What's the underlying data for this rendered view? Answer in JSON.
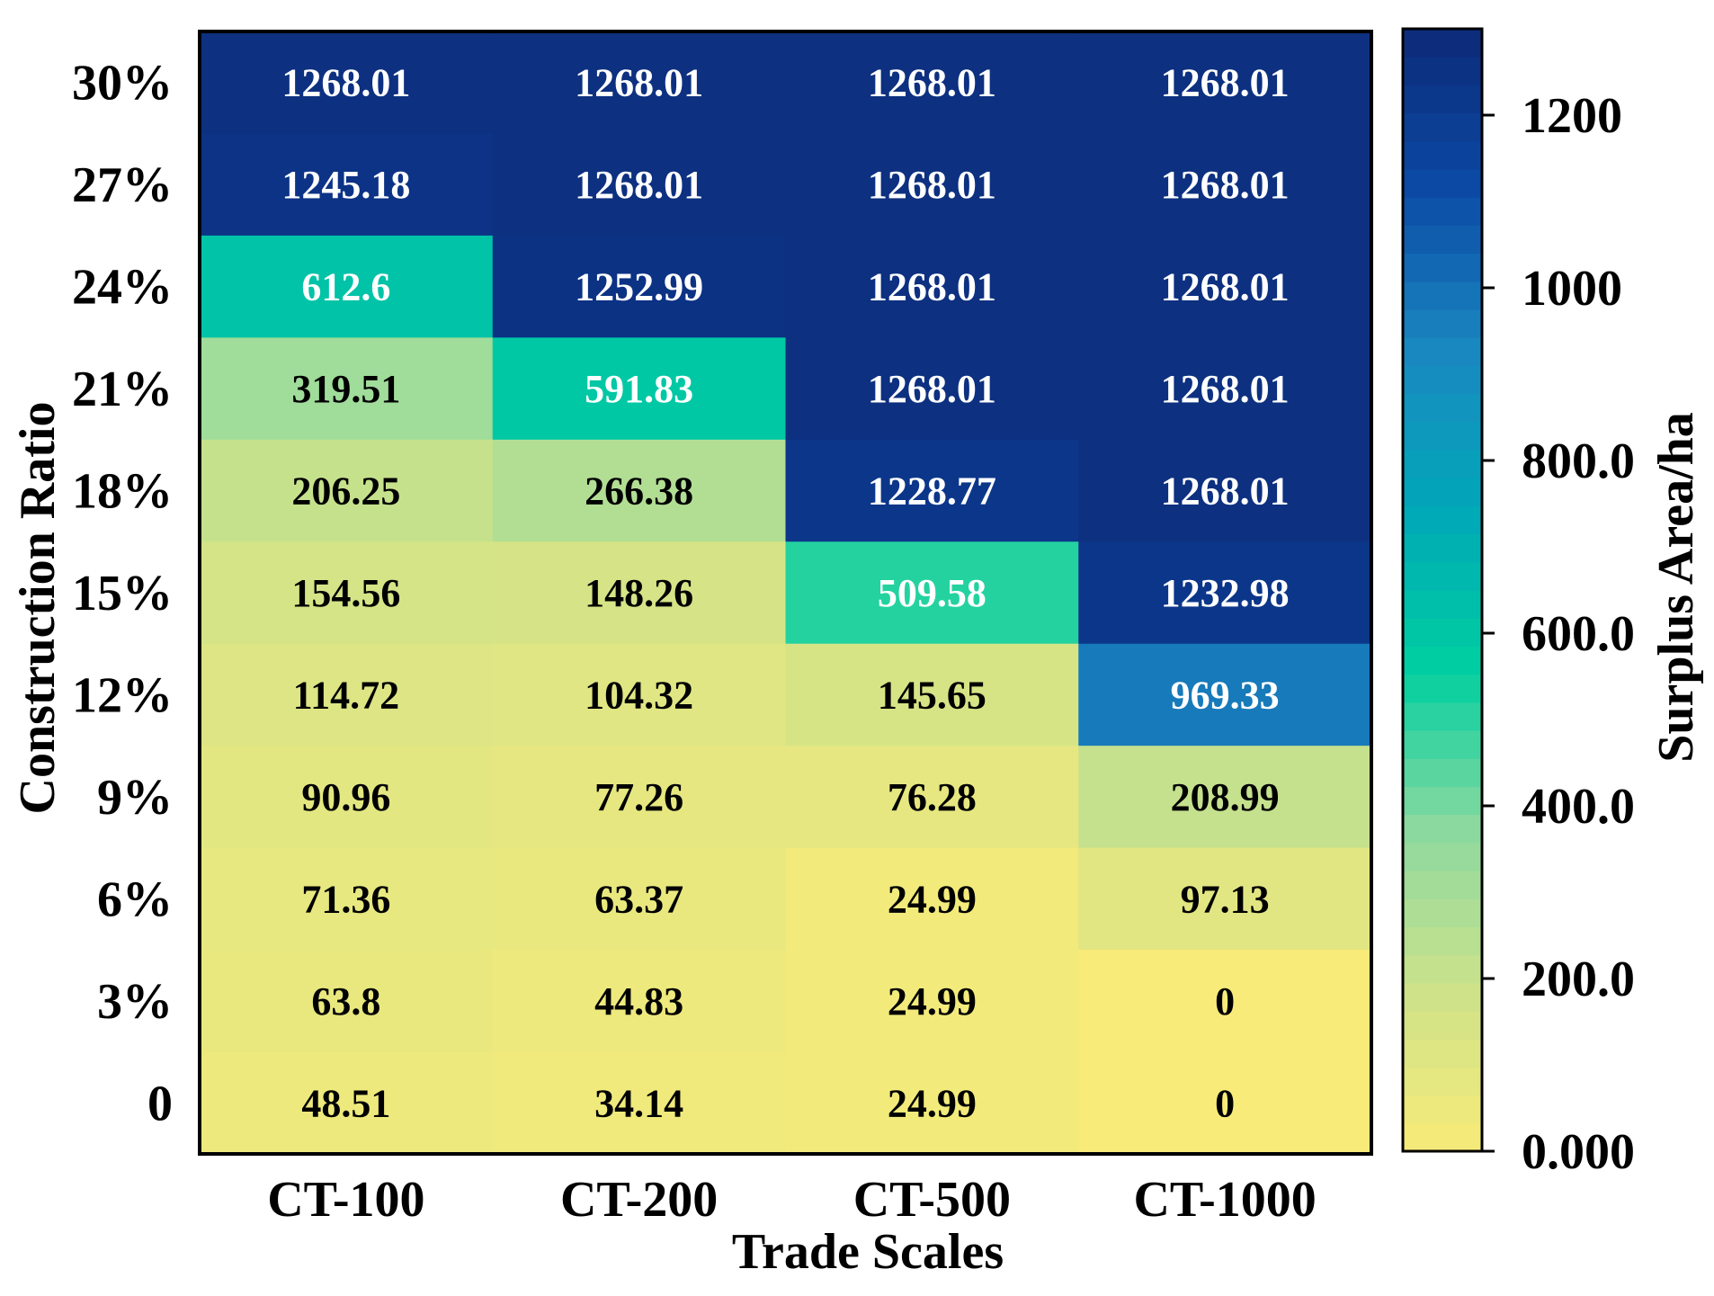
{
  "chart_data": {
    "type": "heatmap",
    "xlabel": "Trade Scales",
    "ylabel": "Construction Ratio",
    "colorbar_label": "Surplus Area/ha",
    "x_categories": [
      "CT-100",
      "CT-200",
      "CT-500",
      "CT-1000"
    ],
    "y_categories": [
      "30%",
      "27%",
      "24%",
      "21%",
      "18%",
      "15%",
      "12%",
      "9%",
      "6%",
      "3%",
      "0"
    ],
    "values": [
      [
        1268.01,
        1268.01,
        1268.01,
        1268.01
      ],
      [
        1245.18,
        1268.01,
        1268.01,
        1268.01
      ],
      [
        612.6,
        1252.99,
        1268.01,
        1268.01
      ],
      [
        319.51,
        591.83,
        1268.01,
        1268.01
      ],
      [
        206.25,
        266.38,
        1228.77,
        1268.01
      ],
      [
        154.56,
        148.26,
        509.58,
        1232.98
      ],
      [
        114.72,
        104.32,
        145.65,
        969.33
      ],
      [
        90.96,
        77.26,
        76.28,
        208.99
      ],
      [
        71.36,
        63.37,
        24.99,
        97.13
      ],
      [
        63.8,
        44.83,
        24.99,
        0
      ],
      [
        48.51,
        34.14,
        24.99,
        0
      ]
    ],
    "value_labels": [
      [
        "1268.01",
        "1268.01",
        "1268.01",
        "1268.01"
      ],
      [
        "1245.18",
        "1268.01",
        "1268.01",
        "1268.01"
      ],
      [
        "612.6",
        "1252.99",
        "1268.01",
        "1268.01"
      ],
      [
        "319.51",
        "591.83",
        "1268.01",
        "1268.01"
      ],
      [
        "206.25",
        "266.38",
        "1228.77",
        "1268.01"
      ],
      [
        "154.56",
        "148.26",
        "509.58",
        "1232.98"
      ],
      [
        "114.72",
        "104.32",
        "145.65",
        "969.33"
      ],
      [
        "90.96",
        "77.26",
        "76.28",
        "208.99"
      ],
      [
        "71.36",
        "63.37",
        "24.99",
        "97.13"
      ],
      [
        "63.8",
        "44.83",
        "24.99",
        "0"
      ],
      [
        "48.51",
        "34.14",
        "24.99",
        "0"
      ]
    ],
    "colorbar": {
      "range": [
        0,
        1300
      ],
      "ticks": [
        {
          "value": 0,
          "label": "0.000"
        },
        {
          "value": 200,
          "label": "200.0"
        },
        {
          "value": 400,
          "label": "400.0"
        },
        {
          "value": 600,
          "label": "600.0"
        },
        {
          "value": 800,
          "label": "800.0"
        },
        {
          "value": 1000,
          "label": "1000"
        },
        {
          "value": 1200,
          "label": "1200"
        }
      ],
      "colormap": [
        "#f8eb79",
        "#cde28a",
        "#8ed9a0",
        "#00cfa0",
        "#00a8b8",
        "#1a88c0",
        "#0b4aa6",
        "#0d2a78"
      ]
    }
  }
}
